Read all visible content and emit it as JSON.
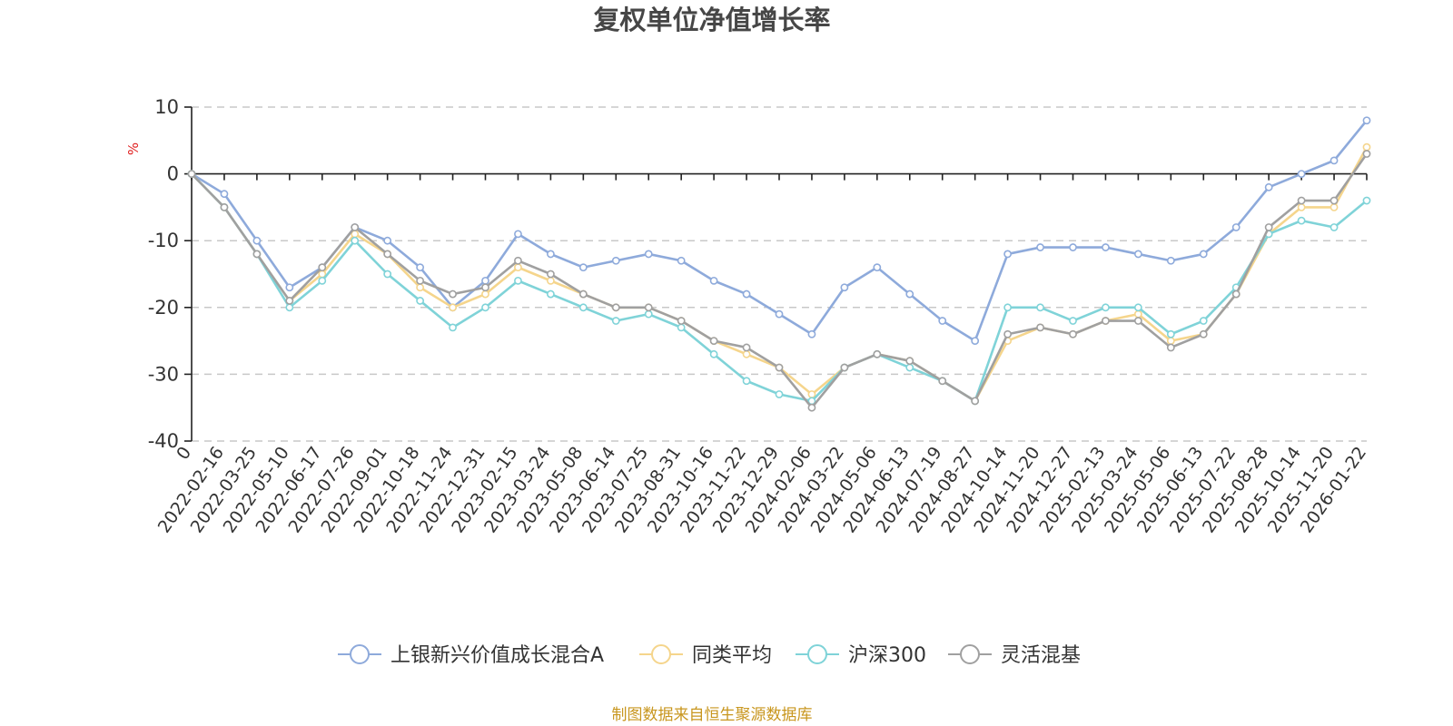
{
  "chart_data": {
    "type": "line",
    "title": "复权单位净值增长率",
    "ylabel": "%",
    "ylim": [
      -40,
      10
    ],
    "yticks": [
      "10",
      "0",
      "-10",
      "-20",
      "-30",
      "-40"
    ],
    "x": [
      "0",
      "2022-02-16",
      "2022-03-25",
      "2022-05-10",
      "2022-06-17",
      "2022-07-26",
      "2022-09-01",
      "2022-10-18",
      "2022-11-24",
      "2022-12-31",
      "2023-02-15",
      "2023-03-24",
      "2023-05-08",
      "2023-06-14",
      "2023-07-25",
      "2023-08-31",
      "2023-10-16",
      "2023-11-22",
      "2023-12-29",
      "2024-02-06",
      "2024-03-22",
      "2024-05-06",
      "2024-06-13",
      "2024-07-19",
      "2024-08-27",
      "2024-10-14",
      "2024-11-20",
      "2024-12-27",
      "2025-02-13",
      "2025-03-24",
      "2025-05-06",
      "2025-06-13",
      "2025-07-22",
      "2025-08-28",
      "2025-10-14",
      "2025-11-20",
      "2026-01-22"
    ],
    "series": [
      {
        "name": "上银新兴价值成长混合A",
        "color": "#8eaadb",
        "values": [
          0,
          -3,
          -10,
          -17,
          -14,
          -8,
          -10,
          -14,
          -20,
          -16,
          -9,
          -12,
          -14,
          -13,
          -12,
          -13,
          -16,
          -18,
          -21,
          -24,
          -17,
          -14,
          -18,
          -22,
          -25,
          -12,
          -11,
          -11,
          -11,
          -12,
          -13,
          -12,
          -8,
          -2,
          0,
          2,
          8
        ]
      },
      {
        "name": "同类平均",
        "color": "#f5d58c",
        "values": [
          0,
          -5,
          -12,
          -19,
          -15,
          -9,
          -12,
          -17,
          -20,
          -18,
          -14,
          -16,
          -18,
          -20,
          -20,
          -22,
          -25,
          -27,
          -29,
          -33,
          -29,
          -27,
          -28,
          -31,
          -34,
          -25,
          -23,
          -24,
          -22,
          -21,
          -25,
          -24,
          -18,
          -9,
          -5,
          -5,
          4
        ]
      },
      {
        "name": "沪深300",
        "color": "#7fd3d8",
        "values": [
          0,
          -5,
          -12,
          -20,
          -16,
          -10,
          -15,
          -19,
          -23,
          -20,
          -16,
          -18,
          -20,
          -22,
          -21,
          -23,
          -27,
          -31,
          -33,
          -34,
          -29,
          -27,
          -29,
          -31,
          -34,
          -20,
          -20,
          -22,
          -20,
          -20,
          -24,
          -22,
          -17,
          -9,
          -7,
          -8,
          -4
        ]
      },
      {
        "name": "灵活混基",
        "color": "#a0a0a0",
        "values": [
          0,
          -5,
          -12,
          -19,
          -14,
          -8,
          -12,
          -16,
          -18,
          -17,
          -13,
          -15,
          -18,
          -20,
          -20,
          -22,
          -25,
          -26,
          -29,
          -35,
          -29,
          -27,
          -28,
          -31,
          -34,
          -24,
          -23,
          -24,
          -22,
          -22,
          -26,
          -24,
          -18,
          -8,
          -4,
          -4,
          3
        ]
      }
    ]
  },
  "footer": {
    "source": "制图数据来自恒生聚源数据库"
  }
}
